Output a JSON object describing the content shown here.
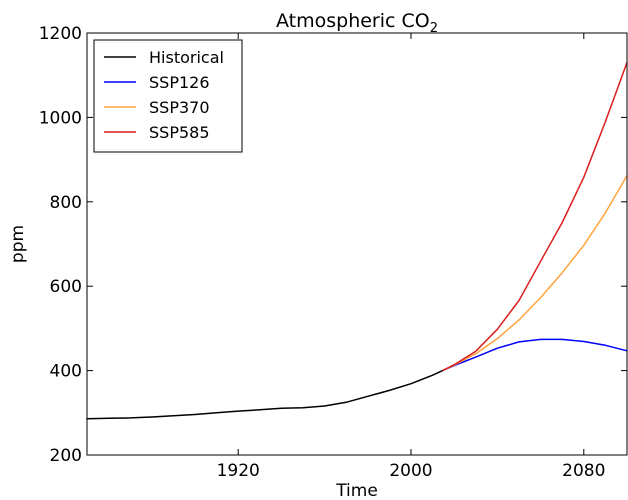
{
  "chart_data": {
    "type": "line",
    "title": "Atmospheric CO",
    "title_subscript": "2",
    "xlabel": "Time",
    "ylabel": "ppm",
    "xlim": [
      1850,
      2100
    ],
    "ylim": [
      200,
      1200
    ],
    "xticks": [
      1920,
      2000,
      2080
    ],
    "yticks": [
      200,
      400,
      600,
      800,
      1000,
      1200
    ],
    "grid": false,
    "legend_position": "top-left",
    "series": [
      {
        "name": "Historical",
        "color": "#000000",
        "x": [
          1850,
          1860,
          1870,
          1880,
          1890,
          1900,
          1910,
          1920,
          1930,
          1940,
          1950,
          1960,
          1970,
          1980,
          1990,
          2000,
          2010,
          2015
        ],
        "y": [
          286,
          287,
          288,
          290,
          293,
          296,
          300,
          304,
          307,
          311,
          312,
          316,
          325,
          339,
          353,
          369,
          389,
          401
        ]
      },
      {
        "name": "SSP126",
        "color": "#0000ff",
        "x": [
          2015,
          2020,
          2030,
          2040,
          2050,
          2060,
          2070,
          2080,
          2090,
          2100
        ],
        "y": [
          401,
          412,
          432,
          453,
          468,
          474,
          474,
          469,
          460,
          447
        ]
      },
      {
        "name": "SSP370",
        "color": "#ffa53f",
        "x": [
          2015,
          2020,
          2030,
          2040,
          2050,
          2060,
          2070,
          2080,
          2090,
          2100
        ],
        "y": [
          401,
          413,
          440,
          476,
          520,
          573,
          632,
          697,
          774,
          862
        ]
      },
      {
        "name": "SSP585",
        "color": "#dc1e1e",
        "x": [
          2015,
          2020,
          2030,
          2040,
          2050,
          2060,
          2070,
          2080,
          2090,
          2100
        ],
        "y": [
          401,
          414,
          446,
          498,
          566,
          659,
          751,
          858,
          990,
          1130
        ]
      }
    ]
  }
}
